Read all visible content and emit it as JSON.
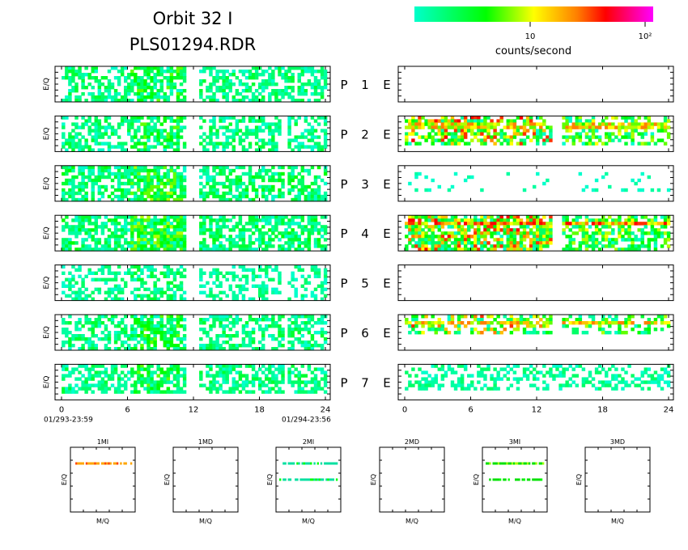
{
  "header": {
    "title_line1": "Orbit 32 I",
    "title_line2": "PLS01294.RDR"
  },
  "colorbar": {
    "label": "counts/second",
    "tick_labels": [
      "10",
      "10²"
    ],
    "gradient_colors": [
      "#00ffcc",
      "#00ff00",
      "#ffff00",
      "#ff8000",
      "#ff0000",
      "#ff00ff"
    ]
  },
  "time_axis": {
    "tick_labels": [
      "0",
      "6",
      "12",
      "18",
      "24"
    ],
    "start_label": "01/293-23:59",
    "end_label": "01/294-23:56"
  },
  "panel_ylabel": "E/Q",
  "rows": [
    {
      "p_label": "P",
      "number": "1",
      "e_label": "E"
    },
    {
      "p_label": "P",
      "number": "2",
      "e_label": "E"
    },
    {
      "p_label": "P",
      "number": "3",
      "e_label": "E"
    },
    {
      "p_label": "P",
      "number": "4",
      "e_label": "E"
    },
    {
      "p_label": "P",
      "number": "5",
      "e_label": "E"
    },
    {
      "p_label": "P",
      "number": "6",
      "e_label": "E"
    },
    {
      "p_label": "P",
      "number": "7",
      "e_label": "E"
    }
  ],
  "mass_panels": {
    "xlabel": "M/Q",
    "ylabel": "E/Q",
    "items": [
      {
        "title": "1MI"
      },
      {
        "title": "1MD"
      },
      {
        "title": "2MI"
      },
      {
        "title": "2MD"
      },
      {
        "title": "3MI"
      },
      {
        "title": "3MD"
      }
    ]
  },
  "chart_data": {
    "type": "heatmap",
    "x_range": [
      0,
      24
    ],
    "x_ticks": [
      0,
      6,
      12,
      18,
      24
    ],
    "color_scale": "log",
    "color_range": [
      1,
      100
    ],
    "ion_panels": [
      {
        "segments": [
          [
            0.5,
            11.3
          ],
          [
            12.5,
            20.2
          ],
          [
            20.2,
            23.8
          ]
        ],
        "density": 0.55,
        "peak": 4,
        "hot_hours": [
          6.5,
          11
        ],
        "fill_rows": [
          0.0,
          1.0
        ],
        "band": null
      },
      {
        "segments": [
          [
            0.5,
            11.3
          ],
          [
            12.5,
            19.8
          ],
          [
            20.2,
            23.8
          ]
        ],
        "density": 0.5,
        "peak": 4,
        "hot_hours": [
          6.5,
          11
        ],
        "fill_rows": [
          0.0,
          1.0
        ],
        "band": null
      },
      {
        "segments": [
          [
            0.5,
            11.3
          ],
          [
            12.5,
            20.0
          ],
          [
            20.2,
            23.8
          ]
        ],
        "density": 0.6,
        "peak": 5,
        "hot_hours": [
          6.5,
          11
        ],
        "fill_rows": [
          0.0,
          1.0
        ],
        "band": null
      },
      {
        "segments": [
          [
            0.5,
            11.3
          ],
          [
            12.5,
            20.2
          ],
          [
            20.2,
            23.8
          ]
        ],
        "density": 0.65,
        "peak": 5,
        "hot_hours": [
          6.5,
          11
        ],
        "fill_rows": [
          0.0,
          1.0
        ],
        "band": null
      },
      {
        "segments": [
          [
            0.5,
            11.3
          ],
          [
            12.5,
            19.8
          ],
          [
            20.2,
            23.8
          ]
        ],
        "density": 0.4,
        "peak": 3,
        "hot_hours": [
          6.5,
          11
        ],
        "fill_rows": [
          0.0,
          1.0
        ],
        "band": null
      },
      {
        "segments": [
          [
            0.5,
            11.3
          ],
          [
            12.5,
            20.0
          ],
          [
            20.2,
            23.8
          ]
        ],
        "density": 0.55,
        "peak": 4,
        "hot_hours": [
          6.5,
          11
        ],
        "fill_rows": [
          0.0,
          1.0
        ],
        "band": null
      },
      {
        "segments": [
          [
            0.5,
            11.3
          ],
          [
            12.5,
            20.0
          ],
          [
            20.2,
            23.8
          ]
        ],
        "density": 0.55,
        "peak": 4,
        "hot_hours": [
          6.5,
          11
        ],
        "fill_rows": [
          0.0,
          0.8
        ],
        "band": null
      }
    ],
    "electron_panels": [
      {
        "segments": [],
        "density": 0,
        "peak": 0,
        "hot_hours": null,
        "fill_rows": [
          0,
          0
        ],
        "band": null
      },
      {
        "segments": [
          [
            0.5,
            13.5
          ],
          [
            14.2,
            23.6
          ]
        ],
        "density": 0.45,
        "peak": 9,
        "hot_hours": [
          1,
          14
        ],
        "fill_rows": [
          0.0,
          0.8
        ],
        "band": {
          "rows": [
            0.1,
            0.3
          ],
          "level": 8
        }
      },
      {
        "segments": [
          [
            0.5,
            23.6
          ]
        ],
        "density": 0.08,
        "peak": 1,
        "hot_hours": null,
        "fill_rows": [
          0.15,
          0.65
        ],
        "band": null
      },
      {
        "segments": [
          [
            0.5,
            13.5
          ],
          [
            14.2,
            23.6
          ]
        ],
        "density": 0.6,
        "peak": 9,
        "hot_hours": [
          1,
          14
        ],
        "fill_rows": [
          0.0,
          1.0
        ],
        "band": {
          "rows": [
            0.12,
            0.25
          ],
          "level": 10
        }
      },
      {
        "segments": [],
        "density": 0,
        "peak": 0,
        "hot_hours": null,
        "fill_rows": [
          0,
          0
        ],
        "band": null
      },
      {
        "segments": [
          [
            0.5,
            13.5
          ],
          [
            14.2,
            23.6
          ]
        ],
        "density": 0.35,
        "peak": 8,
        "hot_hours": [
          1,
          14
        ],
        "fill_rows": [
          0.0,
          0.5
        ],
        "band": {
          "rows": [
            0.1,
            0.25
          ],
          "level": 8
        }
      },
      {
        "segments": [
          [
            0.5,
            23.6
          ]
        ],
        "density": 0.35,
        "peak": 3,
        "hot_hours": null,
        "fill_rows": [
          0.0,
          0.7
        ],
        "band": null
      }
    ],
    "mass_spectra": [
      {
        "name": "1MI",
        "lines": [
          {
            "e_level": 0.25,
            "mq_from": 0.05,
            "mq_to": 0.95,
            "color": "#ffa500",
            "hot": "#ff4000"
          }
        ]
      },
      {
        "name": "1MD",
        "lines": []
      },
      {
        "name": "2MI",
        "lines": [
          {
            "e_level": 0.25,
            "mq_from": 0.05,
            "mq_to": 0.95,
            "color": "#00e0a0",
            "hot": "#00ff00"
          },
          {
            "e_level": 0.5,
            "mq_from": 0.05,
            "mq_to": 0.95,
            "color": "#00e0a0",
            "hot": "#00ff00"
          }
        ]
      },
      {
        "name": "2MD",
        "lines": []
      },
      {
        "name": "3MI",
        "lines": [
          {
            "e_level": 0.25,
            "mq_from": 0.05,
            "mq_to": 0.95,
            "color": "#00e000",
            "hot": "#a0ff00"
          },
          {
            "e_level": 0.5,
            "mq_from": 0.05,
            "mq_to": 0.95,
            "color": "#00e000",
            "hot": "#00ff00"
          }
        ]
      },
      {
        "name": "3MD",
        "lines": []
      }
    ]
  }
}
